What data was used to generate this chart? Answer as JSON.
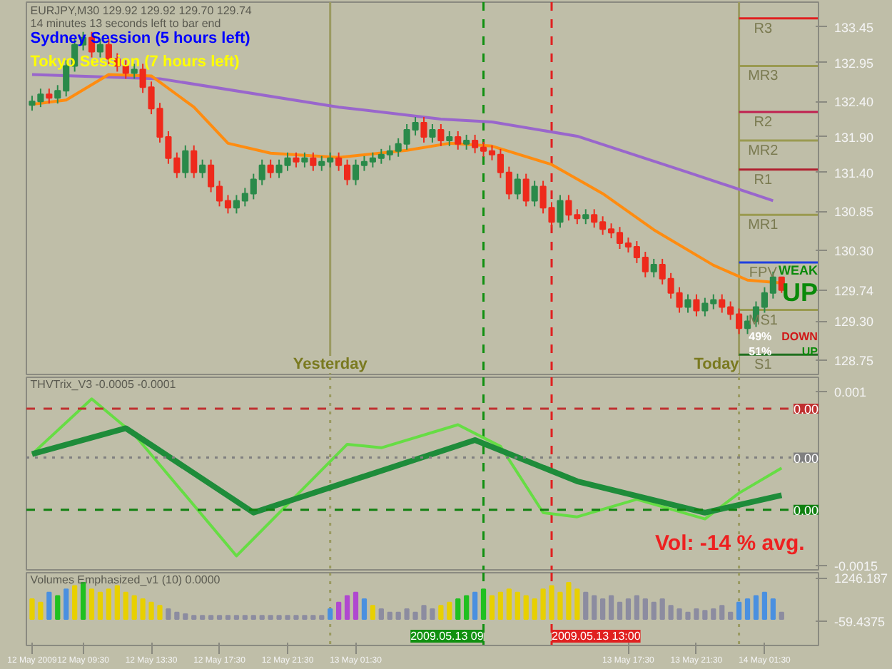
{
  "chart_data": [
    {
      "type": "candlestick",
      "title": "EURJPY,M30  129.92 129.92 129.70 129.74",
      "subtitle": "14 minutes 13 seconds left to bar end",
      "x": [
        "2009-05-12T06:30",
        "2009-05-12T07:00",
        "2009-05-12T07:30",
        "2009-05-12T08:00",
        "2009-05-12T08:30",
        "2009-05-12T09:00",
        "2009-05-12T09:30",
        "2009-05-12T10:00",
        "2009-05-12T10:30",
        "2009-05-12T11:00",
        "2009-05-12T11:30",
        "2009-05-12T12:00",
        "2009-05-12T12:30",
        "2009-05-12T13:00",
        "2009-05-12T13:30",
        "2009-05-12T14:00",
        "2009-05-12T14:30",
        "2009-05-12T15:00",
        "2009-05-12T15:30",
        "2009-05-12T16:00",
        "2009-05-12T16:30",
        "2009-05-12T17:00",
        "2009-05-12T17:30",
        "2009-05-12T18:00",
        "2009-05-12T18:30",
        "2009-05-12T19:00",
        "2009-05-12T19:30",
        "2009-05-12T20:00",
        "2009-05-12T20:30",
        "2009-05-12T21:00",
        "2009-05-12T21:30",
        "2009-05-12T22:00",
        "2009-05-12T22:30",
        "2009-05-12T23:00",
        "2009-05-12T23:30",
        "2009-05-13T00:00",
        "2009-05-13T00:30",
        "2009-05-13T01:00",
        "2009-05-13T01:30",
        "2009-05-13T02:00",
        "2009-05-13T02:30",
        "2009-05-13T03:00",
        "2009-05-13T03:30",
        "2009-05-13T04:00",
        "2009-05-13T04:30",
        "2009-05-13T05:00",
        "2009-05-13T05:30",
        "2009-05-13T06:00",
        "2009-05-13T06:30",
        "2009-05-13T07:00",
        "2009-05-13T07:30",
        "2009-05-13T08:00",
        "2009-05-13T08:30",
        "2009-05-13T09:00",
        "2009-05-13T09:30",
        "2009-05-13T10:00",
        "2009-05-13T10:30",
        "2009-05-13T11:00",
        "2009-05-13T11:30",
        "2009-05-13T12:00",
        "2009-05-13T12:30",
        "2009-05-13T13:00",
        "2009-05-13T13:30",
        "2009-05-13T14:00",
        "2009-05-13T14:30",
        "2009-05-13T15:00",
        "2009-05-13T15:30",
        "2009-05-13T16:00",
        "2009-05-13T16:30",
        "2009-05-13T17:00",
        "2009-05-13T17:30",
        "2009-05-13T18:00",
        "2009-05-13T18:30",
        "2009-05-13T19:00",
        "2009-05-13T19:30",
        "2009-05-13T20:00",
        "2009-05-13T20:30",
        "2009-05-13T21:00",
        "2009-05-13T21:30",
        "2009-05-13T22:00",
        "2009-05-13T22:30",
        "2009-05-13T23:00",
        "2009-05-13T23:30",
        "2009-05-14T00:00",
        "2009-05-14T00:30",
        "2009-05-14T01:00",
        "2009-05-14T01:30",
        "2009-05-14T02:00",
        "2009-05-14T02:30"
      ],
      "ohlc": [
        [
          132.35,
          132.48,
          132.27,
          132.4
        ],
        [
          132.4,
          132.58,
          132.32,
          132.5
        ],
        [
          132.5,
          132.58,
          132.37,
          132.45
        ],
        [
          132.45,
          132.63,
          132.37,
          132.55
        ],
        [
          132.55,
          132.98,
          132.47,
          132.9
        ],
        [
          132.9,
          133.28,
          132.82,
          133.2
        ],
        [
          133.2,
          133.38,
          133.12,
          133.3
        ],
        [
          133.3,
          133.38,
          133.02,
          133.1
        ],
        [
          133.1,
          133.28,
          133.02,
          133.2
        ],
        [
          133.2,
          133.28,
          132.92,
          133.0
        ],
        [
          133.0,
          133.08,
          132.82,
          132.9
        ],
        [
          132.9,
          132.98,
          132.72,
          132.8
        ],
        [
          132.8,
          132.93,
          132.72,
          132.85
        ],
        [
          132.85,
          132.93,
          132.52,
          132.6
        ],
        [
          132.6,
          132.68,
          132.22,
          132.3
        ],
        [
          132.3,
          132.38,
          131.82,
          131.9
        ],
        [
          131.9,
          131.98,
          131.52,
          131.6
        ],
        [
          131.6,
          131.68,
          131.32,
          131.4
        ],
        [
          131.4,
          131.78,
          131.32,
          131.7
        ],
        [
          131.7,
          131.78,
          131.32,
          131.4
        ],
        [
          131.4,
          131.58,
          131.32,
          131.5
        ],
        [
          131.5,
          131.58,
          131.12,
          131.2
        ],
        [
          131.2,
          131.28,
          130.92,
          131.0
        ],
        [
          131.0,
          131.08,
          130.82,
          130.9
        ],
        [
          130.9,
          131.08,
          130.82,
          131.0
        ],
        [
          131.0,
          131.18,
          130.92,
          131.1
        ],
        [
          131.1,
          131.38,
          131.02,
          131.3
        ],
        [
          131.3,
          131.58,
          131.22,
          131.5
        ],
        [
          131.5,
          131.58,
          131.32,
          131.4
        ],
        [
          131.4,
          131.58,
          131.32,
          131.5
        ],
        [
          131.5,
          131.68,
          131.42,
          131.6
        ],
        [
          131.6,
          131.68,
          131.47,
          131.55
        ],
        [
          131.55,
          131.68,
          131.47,
          131.6
        ],
        [
          131.6,
          131.68,
          131.42,
          131.5
        ],
        [
          131.5,
          131.63,
          131.42,
          131.55
        ],
        [
          131.55,
          131.68,
          131.47,
          131.6
        ],
        [
          131.6,
          131.68,
          131.42,
          131.5
        ],
        [
          131.5,
          131.58,
          131.22,
          131.3
        ],
        [
          131.3,
          131.58,
          131.22,
          131.5
        ],
        [
          131.5,
          131.63,
          131.42,
          131.55
        ],
        [
          131.55,
          131.68,
          131.47,
          131.6
        ],
        [
          131.6,
          131.73,
          131.52,
          131.65
        ],
        [
          131.65,
          131.78,
          131.57,
          131.7
        ],
        [
          131.7,
          131.88,
          131.62,
          131.8
        ],
        [
          131.8,
          132.08,
          131.72,
          132.0
        ],
        [
          132.0,
          132.18,
          131.92,
          132.1
        ],
        [
          132.1,
          132.18,
          131.82,
          131.9
        ],
        [
          131.9,
          132.08,
          131.82,
          132.0
        ],
        [
          132.0,
          132.08,
          131.77,
          131.85
        ],
        [
          131.85,
          131.98,
          131.77,
          131.9
        ],
        [
          131.9,
          131.98,
          131.72,
          131.8
        ],
        [
          131.8,
          131.93,
          131.72,
          131.85
        ],
        [
          131.85,
          131.93,
          131.67,
          131.75
        ],
        [
          131.75,
          131.83,
          131.62,
          131.7
        ],
        [
          131.7,
          131.78,
          131.57,
          131.65
        ],
        [
          131.65,
          131.73,
          131.32,
          131.4
        ],
        [
          131.4,
          131.48,
          131.02,
          131.1
        ],
        [
          131.1,
          131.38,
          131.02,
          131.3
        ],
        [
          131.3,
          131.38,
          130.92,
          131.0
        ],
        [
          131.0,
          131.28,
          130.92,
          131.2
        ],
        [
          131.2,
          131.28,
          130.82,
          130.9
        ],
        [
          130.9,
          130.98,
          130.62,
          130.7
        ],
        [
          130.7,
          131.08,
          130.62,
          131.0
        ],
        [
          131.0,
          131.08,
          130.72,
          130.8
        ],
        [
          130.8,
          130.88,
          130.67,
          130.75
        ],
        [
          130.75,
          130.88,
          130.67,
          130.8
        ],
        [
          130.8,
          130.88,
          130.62,
          130.7
        ],
        [
          130.7,
          130.78,
          130.52,
          130.6
        ],
        [
          130.6,
          130.68,
          130.47,
          130.55
        ],
        [
          130.55,
          130.63,
          130.32,
          130.4
        ],
        [
          130.4,
          130.48,
          130.27,
          130.35
        ],
        [
          130.35,
          130.43,
          130.12,
          130.2
        ],
        [
          130.2,
          130.28,
          129.92,
          130.0
        ],
        [
          130.0,
          130.18,
          129.92,
          130.1
        ],
        [
          130.1,
          130.18,
          129.82,
          129.9
        ],
        [
          129.9,
          129.98,
          129.62,
          129.7
        ],
        [
          129.7,
          129.78,
          129.42,
          129.5
        ],
        [
          129.5,
          129.68,
          129.42,
          129.6
        ],
        [
          129.6,
          129.68,
          129.37,
          129.45
        ],
        [
          129.45,
          129.63,
          129.37,
          129.55
        ],
        [
          129.55,
          129.68,
          129.47,
          129.6
        ],
        [
          129.6,
          129.68,
          129.42,
          129.5
        ],
        [
          129.5,
          129.58,
          129.32,
          129.4
        ],
        [
          129.4,
          129.48,
          129.12,
          129.2
        ],
        [
          129.2,
          129.38,
          129.12,
          129.3
        ],
        [
          129.3,
          129.58,
          129.22,
          129.5
        ],
        [
          129.5,
          129.78,
          129.42,
          129.7
        ],
        [
          129.7,
          130.0,
          129.62,
          129.92
        ],
        [
          129.92,
          129.92,
          129.7,
          129.74
        ]
      ],
      "series": [
        {
          "type": "line",
          "color": "#9966cc",
          "x": [
            "2009-05-12T06:30",
            "2009-05-12T14:00",
            "2009-05-13T00:30",
            "2009-05-13T06:30",
            "2009-05-13T09:30",
            "2009-05-13T14:30",
            "2009-05-13T21:00",
            "2009-05-14T02:00"
          ],
          "values": [
            132.78,
            132.72,
            132.32,
            132.15,
            132.11,
            131.91,
            131.4,
            131.0
          ]
        },
        {
          "type": "line",
          "color": "#ff8c10",
          "x": [
            "2009-05-12T06:30",
            "2009-05-12T08:30",
            "2009-05-12T11:00",
            "2009-05-12T13:30",
            "2009-05-12T16:00",
            "2009-05-12T18:00",
            "2009-05-12T20:30",
            "2009-05-13T00:30",
            "2009-05-13T04:30",
            "2009-05-13T07:00",
            "2009-05-13T09:30",
            "2009-05-13T13:00",
            "2009-05-13T16:00",
            "2009-05-13T19:00",
            "2009-05-13T22:30",
            "2009-05-14T00:30",
            "2009-05-14T02:30"
          ],
          "values": [
            132.36,
            132.42,
            132.78,
            132.76,
            132.32,
            131.81,
            131.67,
            131.61,
            131.71,
            131.81,
            131.77,
            131.51,
            131.1,
            130.59,
            130.09,
            129.88,
            129.84
          ]
        }
      ],
      "xlim": [
        "2009-05-12T06:10",
        "2009-05-14T04:40"
      ],
      "ylim": [
        128.55,
        133.8
      ],
      "yticks": [
        {
          "value": 133.45,
          "label": "133.45"
        },
        {
          "value": 132.95,
          "label": "132.95"
        },
        {
          "value": 132.4,
          "label": "132.40"
        },
        {
          "value": 131.9,
          "label": "131.90"
        },
        {
          "value": 131.4,
          "label": "131.40"
        },
        {
          "value": 130.85,
          "label": "130.85"
        },
        {
          "value": 130.3,
          "label": "130.30"
        },
        {
          "value": 129.74,
          "label": "129.74"
        },
        {
          "value": 129.3,
          "label": "129.30"
        },
        {
          "value": 128.75,
          "label": "128.75"
        }
      ],
      "tick_labels": "y",
      "ref_lines": [
        {
          "axis": "x",
          "value": "2009-05-13T00:00",
          "label": "Yesterday",
          "color": "#9a9a60",
          "line_style": "solid"
        },
        {
          "axis": "x",
          "value": "2009-05-13T09:00",
          "color": "#109010",
          "line_style": "dashed"
        },
        {
          "axis": "x",
          "value": "2009-05-13T13:00",
          "color": "#e02020",
          "line_style": "dashed"
        },
        {
          "axis": "x",
          "value": "2009-05-14T00:00",
          "label": "Today",
          "color": "#9a9a60",
          "line_style": "solid"
        },
        {
          "axis": "y",
          "value": 133.57,
          "label": "R3",
          "color": "#e02020"
        },
        {
          "axis": "y",
          "value": 132.9,
          "label": "MR3",
          "color": "#9a9a50"
        },
        {
          "axis": "y",
          "value": 132.25,
          "label": "R2",
          "color": "#c02050"
        },
        {
          "axis": "y",
          "value": 131.85,
          "label": "MR2",
          "color": "#9a9a50"
        },
        {
          "axis": "y",
          "value": 131.44,
          "label": "R1",
          "color": "#b02030"
        },
        {
          "axis": "y",
          "value": 130.8,
          "label": "MR1",
          "color": "#9a9a50"
        },
        {
          "axis": "y",
          "value": 130.13,
          "label": "FPV",
          "color": "#2040e0"
        },
        {
          "axis": "y",
          "value": 129.46,
          "label": "MS1",
          "color": "#9a9a50"
        },
        {
          "axis": "y",
          "value": 128.83,
          "label": "S1",
          "color": "#207020"
        }
      ],
      "annotations": [
        "Sydney Session (5 hours left)",
        "Tokyo Session (7 hours left)",
        "WEAK",
        "UP",
        "49%",
        "51%",
        "DOWN",
        "UP"
      ]
    },
    {
      "type": "line",
      "title": "THVTrix_V3 -0.0005 -0.0001",
      "series": [
        {
          "color": "#66dd44",
          "x": [
            "2009-05-12T06:30",
            "2009-05-12T10:00",
            "2009-05-12T12:30",
            "2009-05-12T18:30",
            "2009-05-13T01:00",
            "2009-05-13T03:00",
            "2009-05-13T07:30",
            "2009-05-13T10:00",
            "2009-05-13T12:30",
            "2009-05-13T14:30",
            "2009-05-13T18:00",
            "2009-05-13T22:00",
            "2009-05-14T00:00",
            "2009-05-14T02:30"
          ],
          "values": [
            0.0001,
            0.00089,
            0.00038,
            -0.00136,
            0.00024,
            0.00019,
            0.00052,
            0.00021,
            -0.00074,
            -0.0008,
            -0.00055,
            -0.00083,
            -0.00046,
            -0.0001
          ]
        },
        {
          "color": "#1e8c3a",
          "x": [
            "2009-05-12T06:30",
            "2009-05-12T12:00",
            "2009-05-12T19:30",
            "2009-05-13T08:30",
            "2009-05-13T14:30",
            "2009-05-13T22:00",
            "2009-05-14T02:30"
          ],
          "values": [
            0.0001,
            0.00047,
            -0.00074,
            0.0003,
            -0.00029,
            -0.00074,
            -0.00049
          ]
        }
      ],
      "xlim": [
        "2009-05-12T06:10",
        "2009-05-14T04:40"
      ],
      "ylim": [
        -0.00156,
        0.0012
      ],
      "yticks": [
        {
          "value": 0.001,
          "label": "0.001"
        },
        {
          "value": -0.0015,
          "label": "-0.0015"
        }
      ],
      "tick_labels": "y",
      "ref_lines": [
        {
          "axis": "x",
          "value": "2009-05-13T00:00",
          "color": "#9a9a60",
          "line_style": "dotted"
        },
        {
          "axis": "x",
          "value": "2009-05-13T09:00",
          "color": "#109010",
          "line_style": "dashed"
        },
        {
          "axis": "x",
          "value": "2009-05-13T13:00",
          "color": "#e02020",
          "line_style": "dashed"
        },
        {
          "axis": "x",
          "value": "2009-05-14T00:00",
          "color": "#9a9a60",
          "line_style": "dotted"
        },
        {
          "axis": "y",
          "value": 0.00075,
          "label": "0.00",
          "color": "#c03030",
          "line_style": "dashed"
        },
        {
          "axis": "y",
          "value": 5e-05,
          "label": "0.00",
          "color": "#808080",
          "line_style": "dotted"
        },
        {
          "axis": "y",
          "value": -0.0007,
          "label": "0.00",
          "color": "#108010",
          "line_style": "dashed"
        }
      ],
      "annotations": [
        "Vol:  -14 % avg."
      ]
    },
    {
      "type": "bar",
      "title": "Volumes Emphasized_v1 (10)  0.0000",
      "x": [
        "2009-05-12T06:30",
        "2009-05-12T07:00",
        "2009-05-12T07:30",
        "2009-05-12T08:00",
        "2009-05-12T08:30",
        "2009-05-12T09:00",
        "2009-05-12T09:30",
        "2009-05-12T10:00",
        "2009-05-12T10:30",
        "2009-05-12T11:00",
        "2009-05-12T11:30",
        "2009-05-12T12:00",
        "2009-05-12T12:30",
        "2009-05-12T13:00",
        "2009-05-12T13:30",
        "2009-05-12T14:00",
        "2009-05-12T14:30",
        "2009-05-12T15:00",
        "2009-05-12T15:30",
        "2009-05-12T16:00",
        "2009-05-12T16:30",
        "2009-05-12T17:00",
        "2009-05-12T17:30",
        "2009-05-12T18:00",
        "2009-05-12T18:30",
        "2009-05-12T19:00",
        "2009-05-12T19:30",
        "2009-05-12T20:00",
        "2009-05-12T20:30",
        "2009-05-12T21:00",
        "2009-05-12T21:30",
        "2009-05-12T22:00",
        "2009-05-12T22:30",
        "2009-05-12T23:00",
        "2009-05-12T23:30",
        "2009-05-13T00:00",
        "2009-05-13T00:30",
        "2009-05-13T01:00",
        "2009-05-13T01:30",
        "2009-05-13T02:00",
        "2009-05-13T02:30",
        "2009-05-13T03:00",
        "2009-05-13T03:30",
        "2009-05-13T04:00",
        "2009-05-13T04:30",
        "2009-05-13T05:00",
        "2009-05-13T05:30",
        "2009-05-13T06:00",
        "2009-05-13T06:30",
        "2009-05-13T07:00",
        "2009-05-13T07:30",
        "2009-05-13T08:00",
        "2009-05-13T08:30",
        "2009-05-13T09:00",
        "2009-05-13T09:30",
        "2009-05-13T10:00",
        "2009-05-13T10:30",
        "2009-05-13T11:00",
        "2009-05-13T11:30",
        "2009-05-13T12:00",
        "2009-05-13T12:30",
        "2009-05-13T13:00",
        "2009-05-13T13:30",
        "2009-05-13T14:00",
        "2009-05-13T14:30",
        "2009-05-13T15:00",
        "2009-05-13T15:30",
        "2009-05-13T16:00",
        "2009-05-13T16:30",
        "2009-05-13T17:00",
        "2009-05-13T17:30",
        "2009-05-13T18:00",
        "2009-05-13T18:30",
        "2009-05-13T19:00",
        "2009-05-13T19:30",
        "2009-05-13T20:00",
        "2009-05-13T20:30",
        "2009-05-13T21:00",
        "2009-05-13T21:30",
        "2009-05-13T22:00",
        "2009-05-13T22:30",
        "2009-05-13T23:00",
        "2009-05-13T23:30",
        "2009-05-14T00:00",
        "2009-05-14T00:30",
        "2009-05-14T01:00",
        "2009-05-14T01:30",
        "2009-05-14T02:00",
        "2009-05-14T02:30"
      ],
      "values": [
        600,
        500,
        800,
        700,
        900,
        1000,
        1100,
        900,
        800,
        900,
        1000,
        800,
        700,
        600,
        500,
        400,
        300,
        200,
        150,
        100,
        100,
        100,
        100,
        100,
        100,
        100,
        100,
        100,
        100,
        100,
        100,
        100,
        100,
        100,
        100,
        300,
        500,
        700,
        800,
        600,
        400,
        300,
        200,
        200,
        300,
        200,
        400,
        300,
        400,
        500,
        600,
        700,
        800,
        900,
        700,
        800,
        900,
        800,
        700,
        600,
        900,
        1000,
        800,
        1100,
        900,
        800,
        700,
        600,
        700,
        500,
        600,
        700,
        600,
        500,
        600,
        400,
        300,
        200,
        300,
        250,
        300,
        400,
        200,
        500,
        600,
        700,
        800,
        600,
        200
      ],
      "colors": [
        "#e8d000",
        "#e8d000",
        "#4a90e0",
        "#20c020",
        "#4a90e0",
        "#e8d000",
        "#20c020",
        "#e8d000",
        "#e8d000",
        "#e8d000",
        "#e8d000",
        "#e8d000",
        "#e8d000",
        "#e8d000",
        "#e8d000",
        "#e8d000",
        "#8c8ca0",
        "#8c8ca0",
        "#8c8ca0",
        "#8c8ca0",
        "#8c8ca0",
        "#8c8ca0",
        "#8c8ca0",
        "#8c8ca0",
        "#8c8ca0",
        "#8c8ca0",
        "#8c8ca0",
        "#8c8ca0",
        "#8c8ca0",
        "#8c8ca0",
        "#8c8ca0",
        "#8c8ca0",
        "#8c8ca0",
        "#8c8ca0",
        "#8c8ca0",
        "#4a90e0",
        "#b048d0",
        "#b048d0",
        "#b048d0",
        "#4a90e0",
        "#e8d000",
        "#8c8ca0",
        "#8c8ca0",
        "#8c8ca0",
        "#8c8ca0",
        "#8c8ca0",
        "#8c8ca0",
        "#8c8ca0",
        "#e8d000",
        "#e8d000",
        "#20c020",
        "#20c020",
        "#4a90e0",
        "#20c020",
        "#e8d000",
        "#e8d000",
        "#e8d000",
        "#e8d000",
        "#e8d000",
        "#e8d000",
        "#e8d000",
        "#e8d000",
        "#e8d000",
        "#e8d000",
        "#e8d000",
        "#8c8ca0",
        "#8c8ca0",
        "#8c8ca0",
        "#8c8ca0",
        "#8c8ca0",
        "#8c8ca0",
        "#8c8ca0",
        "#8c8ca0",
        "#8c8ca0",
        "#8c8ca0",
        "#8c8ca0",
        "#8c8ca0",
        "#8c8ca0",
        "#8c8ca0",
        "#8c8ca0",
        "#8c8ca0",
        "#8c8ca0",
        "#8c8ca0",
        "#4a90e0",
        "#4a90e0",
        "#4a90e0",
        "#4a90e0",
        "#4a90e0",
        "#8c8ca0"
      ],
      "xlim": [
        "2009-05-12T06:10",
        "2009-05-14T04:40"
      ],
      "ylim": [
        -800,
        1400
      ],
      "yticks": [
        {
          "value": 1246.187,
          "label": "1246.187"
        },
        {
          "value": -59.4375,
          "label": "-59.4375"
        }
      ],
      "xticks": [
        {
          "value": "2009-05-12T06:30",
          "label": "12 May 2009"
        },
        {
          "value": "2009-05-12T09:30",
          "label": "12 May 09:30"
        },
        {
          "value": "2009-05-12T13:30",
          "label": "12 May 13:30"
        },
        {
          "value": "2009-05-12T17:30",
          "label": "12 May 17:30"
        },
        {
          "value": "2009-05-12T21:30",
          "label": "12 May 21:30"
        },
        {
          "value": "2009-05-13T01:30",
          "label": "13 May 01:30"
        },
        {
          "value": "2009-05-13T17:30",
          "label": "13 May 17:30"
        },
        {
          "value": "2009-05-13T21:30",
          "label": "13 May 21:30"
        },
        {
          "value": "2009-05-14T01:30",
          "label": "14 May 01:30"
        }
      ],
      "ref_lines": [
        {
          "axis": "x",
          "value": "2009-05-13T00:00",
          "color": "#9a9a60",
          "line_style": "dotted"
        },
        {
          "axis": "x",
          "value": "2009-05-13T09:00",
          "label": "2009.05.13 09",
          "color": "#109010",
          "line_style": "dashed"
        },
        {
          "axis": "x",
          "value": "2009-05-13T13:00",
          "label": "2009.05.13 13:00",
          "color": "#e02020",
          "line_style": "dashed"
        },
        {
          "axis": "x",
          "value": "2009-05-14T00:00",
          "color": "#9a9a60",
          "line_style": "dotted"
        }
      ]
    }
  ]
}
